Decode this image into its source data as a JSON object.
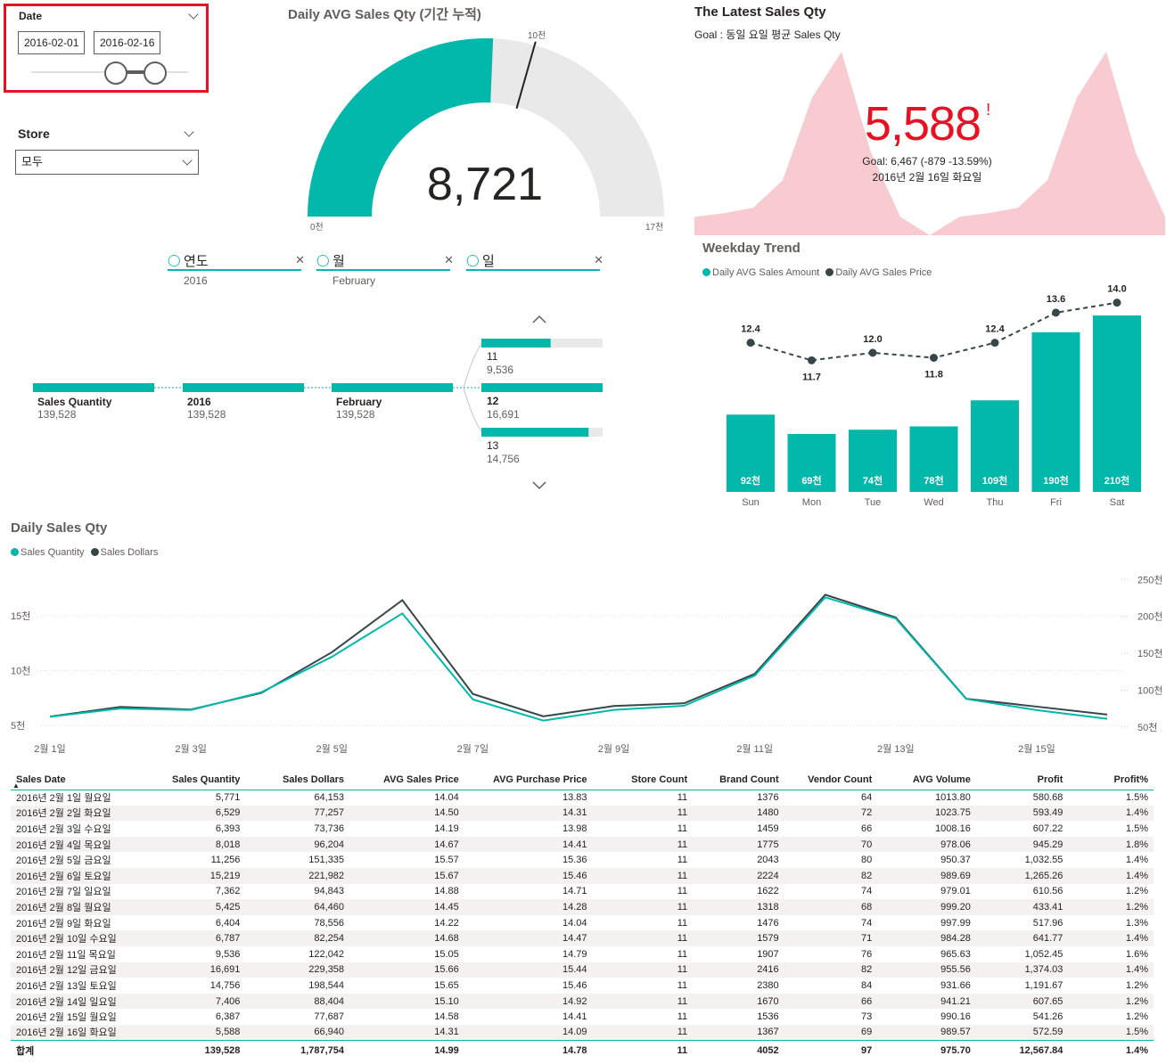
{
  "date_slicer": {
    "title": "Date",
    "start": "2016-02-01",
    "end": "2016-02-16"
  },
  "store_slicer": {
    "title": "Store",
    "selected": "모두"
  },
  "gauge": {
    "title": "Daily AVG Sales Qty (기간 누적)",
    "value_label": "8,721",
    "min_label": "0천",
    "max_label": "17천",
    "target_label": "10천",
    "value": 8721,
    "min": 0,
    "max": 17000,
    "target": 10000,
    "color": "#01b8aa"
  },
  "kpi": {
    "title": "The Latest Sales Qty",
    "subtitle": "Goal : 동일 요일 평균 Sales Qty",
    "value": "5,588",
    "alert": "!",
    "goal_text": "Goal: 6,467 (-879 -13.59%)",
    "date_text": "2016년 2월 16일 화요일",
    "value_color": "#e81123",
    "area_color": "#f8cbd0"
  },
  "filters": [
    {
      "label": "연도",
      "value": "2016"
    },
    {
      "label": "월",
      "value": "February"
    },
    {
      "label": "일",
      "value": ""
    }
  ],
  "decomposition": {
    "nodes": [
      {
        "label": "Sales Quantity",
        "value": "139,528"
      },
      {
        "label": "2016",
        "value": "139,528"
      },
      {
        "label": "February",
        "value": "139,528"
      }
    ],
    "leaves": [
      {
        "label": "11",
        "value": "9,536",
        "fraction": 0.571,
        "selected": false
      },
      {
        "label": "12",
        "value": "16,691",
        "fraction": 1.0,
        "selected": true
      },
      {
        "label": "13",
        "value": "14,756",
        "fraction": 0.884,
        "selected": false
      }
    ]
  },
  "weekday_trend": {
    "title": "Weekday Trend",
    "legend": [
      "Daily AVG Sales Amount",
      "Daily AVG Sales Price"
    ],
    "colors": [
      "#01b8aa",
      "#374649"
    ]
  },
  "daily_sales": {
    "title": "Daily Sales Qty",
    "legend": [
      "Sales Quantity",
      "Sales Dollars"
    ],
    "colors": [
      "#01b8aa",
      "#374649"
    ]
  },
  "chart_data": [
    {
      "type": "bar",
      "title": "Weekday Trend",
      "categories": [
        "Sun",
        "Mon",
        "Tue",
        "Wed",
        "Thu",
        "Fri",
        "Sat"
      ],
      "series": [
        {
          "name": "Daily AVG Sales Amount",
          "values": [
            92,
            69,
            74,
            78,
            109,
            190,
            210
          ],
          "labels": [
            "92천",
            "69천",
            "74천",
            "78천",
            "109천",
            "190천",
            "210천"
          ]
        },
        {
          "name": "Daily AVG Sales Price",
          "values": [
            12.4,
            11.7,
            12.0,
            11.8,
            12.4,
            13.6,
            14.0
          ],
          "labels": [
            "12.4",
            "11.7",
            "12.0",
            "11.8",
            "12.4",
            "13.6",
            "14.0"
          ]
        }
      ]
    },
    {
      "type": "line",
      "title": "Daily Sales Qty",
      "x": [
        "2월 1일",
        "2월 2일",
        "2월 3일",
        "2월 4일",
        "2월 5일",
        "2월 6일",
        "2월 7일",
        "2월 8일",
        "2월 9일",
        "2월 10일",
        "2월 11일",
        "2월 12일",
        "2월 13일",
        "2월 14일",
        "2월 15일",
        "2월 16일"
      ],
      "x_tick_labels": [
        "2월 1일",
        "2월 3일",
        "2월 5일",
        "2월 7일",
        "2월 9일",
        "2월 11일",
        "2월 13일",
        "2월 15일"
      ],
      "y_left_ticks": [
        "5천",
        "10천",
        "15천"
      ],
      "y_right_ticks": [
        "50천",
        "100천",
        "150천",
        "200천",
        "250천"
      ],
      "ylim_left": [
        4500,
        19000
      ],
      "ylim_right": [
        45000,
        260000
      ],
      "series": [
        {
          "name": "Sales Quantity",
          "axis": "left",
          "values": [
            5771,
            6529,
            6393,
            8018,
            11256,
            15219,
            7362,
            5425,
            6404,
            6787,
            9536,
            16691,
            14756,
            7406,
            6387,
            5588
          ]
        },
        {
          "name": "Sales Dollars",
          "axis": "right",
          "values": [
            64153,
            77257,
            73736,
            96204,
            151335,
            221982,
            94843,
            64460,
            78556,
            82254,
            122042,
            229358,
            198544,
            88404,
            77687,
            66940
          ]
        }
      ]
    },
    {
      "type": "area",
      "title": "The Latest Sales Qty",
      "values": [
        0.1,
        0.12,
        0.15,
        0.3,
        0.75,
        1.0,
        0.45,
        0.1,
        0.0,
        0.1,
        0.12,
        0.15,
        0.3,
        0.75,
        1.0,
        0.45,
        0.1
      ]
    }
  ],
  "table": {
    "columns": [
      "Sales Date",
      "Sales Quantity",
      "Sales Dollars",
      "AVG Sales Price",
      "AVG Purchase Price",
      "Store Count",
      "Brand Count",
      "Vendor Count",
      "AVG Volume",
      "Profit",
      "Profit%"
    ],
    "rows": [
      [
        "2016년 2월 1일 월요일",
        "5,771",
        "64,153",
        "14.04",
        "13.83",
        "11",
        "1376",
        "64",
        "1013.80",
        "580.68",
        "1.5%"
      ],
      [
        "2016년 2월 2일 화요일",
        "6,529",
        "77,257",
        "14.50",
        "14.31",
        "11",
        "1480",
        "72",
        "1023.75",
        "593.49",
        "1.4%"
      ],
      [
        "2016년 2월 3일 수요일",
        "6,393",
        "73,736",
        "14.19",
        "13.98",
        "11",
        "1459",
        "66",
        "1008.16",
        "607.22",
        "1.5%"
      ],
      [
        "2016년 2월 4일 목요일",
        "8,018",
        "96,204",
        "14.67",
        "14.41",
        "11",
        "1775",
        "70",
        "978.06",
        "945.29",
        "1.8%"
      ],
      [
        "2016년 2월 5일 금요일",
        "11,256",
        "151,335",
        "15.57",
        "15.36",
        "11",
        "2043",
        "80",
        "950.37",
        "1,032.55",
        "1.4%"
      ],
      [
        "2016년 2월 6일 토요일",
        "15,219",
        "221,982",
        "15.67",
        "15.46",
        "11",
        "2224",
        "82",
        "989.69",
        "1,265.26",
        "1.4%"
      ],
      [
        "2016년 2월 7일 일요일",
        "7,362",
        "94,843",
        "14.88",
        "14.71",
        "11",
        "1622",
        "74",
        "979.01",
        "610.56",
        "1.2%"
      ],
      [
        "2016년 2월 8일 월요일",
        "5,425",
        "64,460",
        "14.45",
        "14.28",
        "11",
        "1318",
        "68",
        "999.20",
        "433.41",
        "1.2%"
      ],
      [
        "2016년 2월 9일 화요일",
        "6,404",
        "78,556",
        "14.22",
        "14.04",
        "11",
        "1476",
        "74",
        "997.99",
        "517.96",
        "1.3%"
      ],
      [
        "2016년 2월 10일 수요일",
        "6,787",
        "82,254",
        "14.68",
        "14.47",
        "11",
        "1579",
        "71",
        "984.28",
        "641.77",
        "1.4%"
      ],
      [
        "2016년 2월 11일 목요일",
        "9,536",
        "122,042",
        "15.05",
        "14.79",
        "11",
        "1907",
        "76",
        "965.63",
        "1,052.45",
        "1.6%"
      ],
      [
        "2016년 2월 12일 금요일",
        "16,691",
        "229,358",
        "15.66",
        "15.44",
        "11",
        "2416",
        "82",
        "955.56",
        "1,374.03",
        "1.4%"
      ],
      [
        "2016년 2월 13일 토요일",
        "14,756",
        "198,544",
        "15.65",
        "15.46",
        "11",
        "2380",
        "84",
        "931.66",
        "1,191.67",
        "1.2%"
      ],
      [
        "2016년 2월 14일 일요일",
        "7,406",
        "88,404",
        "15.10",
        "14.92",
        "11",
        "1670",
        "66",
        "941.21",
        "607.65",
        "1.2%"
      ],
      [
        "2016년 2월 15일 월요일",
        "6,387",
        "77,687",
        "14.58",
        "14.41",
        "11",
        "1536",
        "73",
        "990.16",
        "541.26",
        "1.2%"
      ],
      [
        "2016년 2월 16일 화요일",
        "5,588",
        "66,940",
        "14.31",
        "14.09",
        "11",
        "1367",
        "69",
        "989.57",
        "572.59",
        "1.5%"
      ]
    ],
    "total": [
      "합계",
      "139,528",
      "1,787,754",
      "14.99",
      "14.78",
      "11",
      "4052",
      "97",
      "975.70",
      "12,567.84",
      "1.4%"
    ]
  }
}
